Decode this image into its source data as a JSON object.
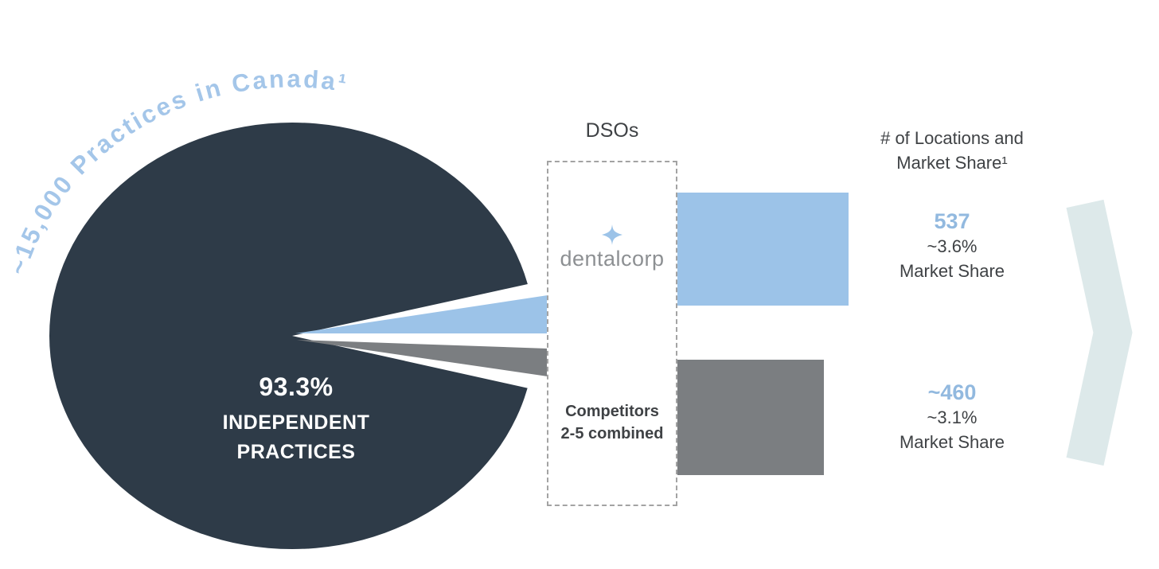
{
  "colors": {
    "dark_navy": "#2e3b48",
    "light_blue": "#9cc3e8",
    "arc_blue": "#a4c6e9",
    "gray": "#7b7e81",
    "pale_chevron": "#dde9ea",
    "text_dark": "#3f4245"
  },
  "pie": {
    "arc_title": "~15,000 Practices in Canada¹",
    "center_value": "93.3%",
    "center_line1": "INDEPENDENT",
    "center_line2": "PRACTICES"
  },
  "dso_box": {
    "heading": "DSOs",
    "logo_text": "dentalcorp",
    "logo_icon": "sparkle-icon",
    "competitors_line1": "Competitors",
    "competitors_line2": "2-5 combined"
  },
  "stats": {
    "header_line1": "# of Locations and",
    "header_line2": "Market Share¹",
    "dentalcorp": {
      "locations": "537",
      "share": "~3.6%",
      "label": "Market Share"
    },
    "competitors": {
      "locations": "~460",
      "share": "~3.1%",
      "label": "Market Share"
    }
  },
  "chart_data": [
    {
      "type": "pie",
      "title": "~15,000 Practices in Canada¹",
      "slices": [
        {
          "label": "Independent Practices",
          "value": 93.3,
          "color": "#2e3b48"
        },
        {
          "label": "dentalcorp",
          "value": 3.6,
          "color": "#9cc3e8"
        },
        {
          "label": "Competitors 2-5 combined",
          "value": 3.1,
          "color": "#7b7e81"
        }
      ],
      "center_label": "93.3% INDEPENDENT PRACTICES"
    },
    {
      "type": "bar",
      "title": "# of Locations and Market Share¹",
      "orientation": "horizontal",
      "categories": [
        "dentalcorp",
        "Competitors 2-5 combined"
      ],
      "values": [
        537,
        460
      ],
      "value_labels": [
        "537",
        "~460"
      ],
      "market_share": [
        "~3.6%",
        "~3.1%"
      ],
      "colors": [
        "#9cc3e8",
        "#7b7e81"
      ],
      "legend": "off",
      "grid": "off"
    }
  ]
}
